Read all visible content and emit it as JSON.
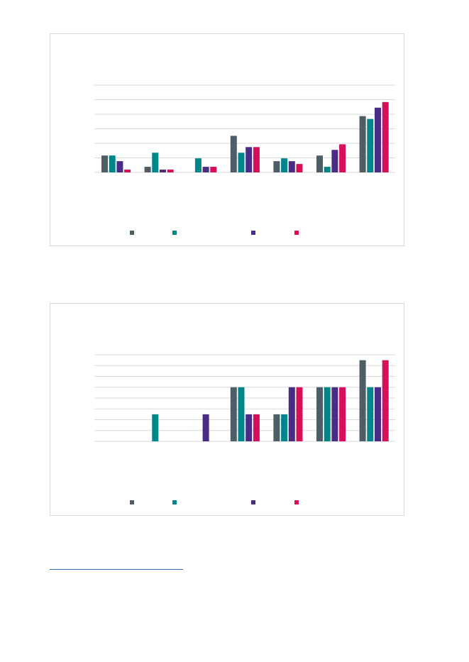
{
  "chart_data": [
    {
      "type": "bar",
      "categories": [
        "",
        "",
        "",
        "",
        "",
        "",
        ""
      ],
      "series": [
        {
          "color": "#4d5e67",
          "values": [
            6,
            2,
            0,
            13,
            4,
            6,
            20
          ]
        },
        {
          "color": "#00858a",
          "values": [
            6,
            7,
            5,
            7,
            5,
            2,
            19
          ]
        },
        {
          "color": "#4b2c85",
          "values": [
            4,
            1,
            2,
            9,
            4,
            8,
            23
          ]
        },
        {
          "color": "#d50f5a",
          "values": [
            1,
            1,
            2,
            9,
            3,
            10,
            25
          ]
        }
      ],
      "ylim": [
        0,
        31
      ],
      "grid": true,
      "legend_position": "bottom"
    },
    {
      "type": "bar",
      "categories": [
        "",
        "",
        "",
        "",
        "",
        "",
        ""
      ],
      "series": [
        {
          "color": "#4d5e67",
          "values": [
            0,
            0,
            0,
            5,
            2.5,
            5,
            7.5
          ]
        },
        {
          "color": "#00858a",
          "values": [
            0,
            2.5,
            0,
            5,
            2.5,
            5,
            5
          ]
        },
        {
          "color": "#4b2c85",
          "values": [
            0,
            0,
            2.5,
            2.5,
            5,
            5,
            5
          ]
        },
        {
          "color": "#d50f5a",
          "values": [
            0,
            0,
            0,
            2.5,
            5,
            5,
            7.5
          ]
        }
      ],
      "ylim": [
        0,
        8
      ],
      "grid": true,
      "legend_position": "bottom"
    }
  ]
}
